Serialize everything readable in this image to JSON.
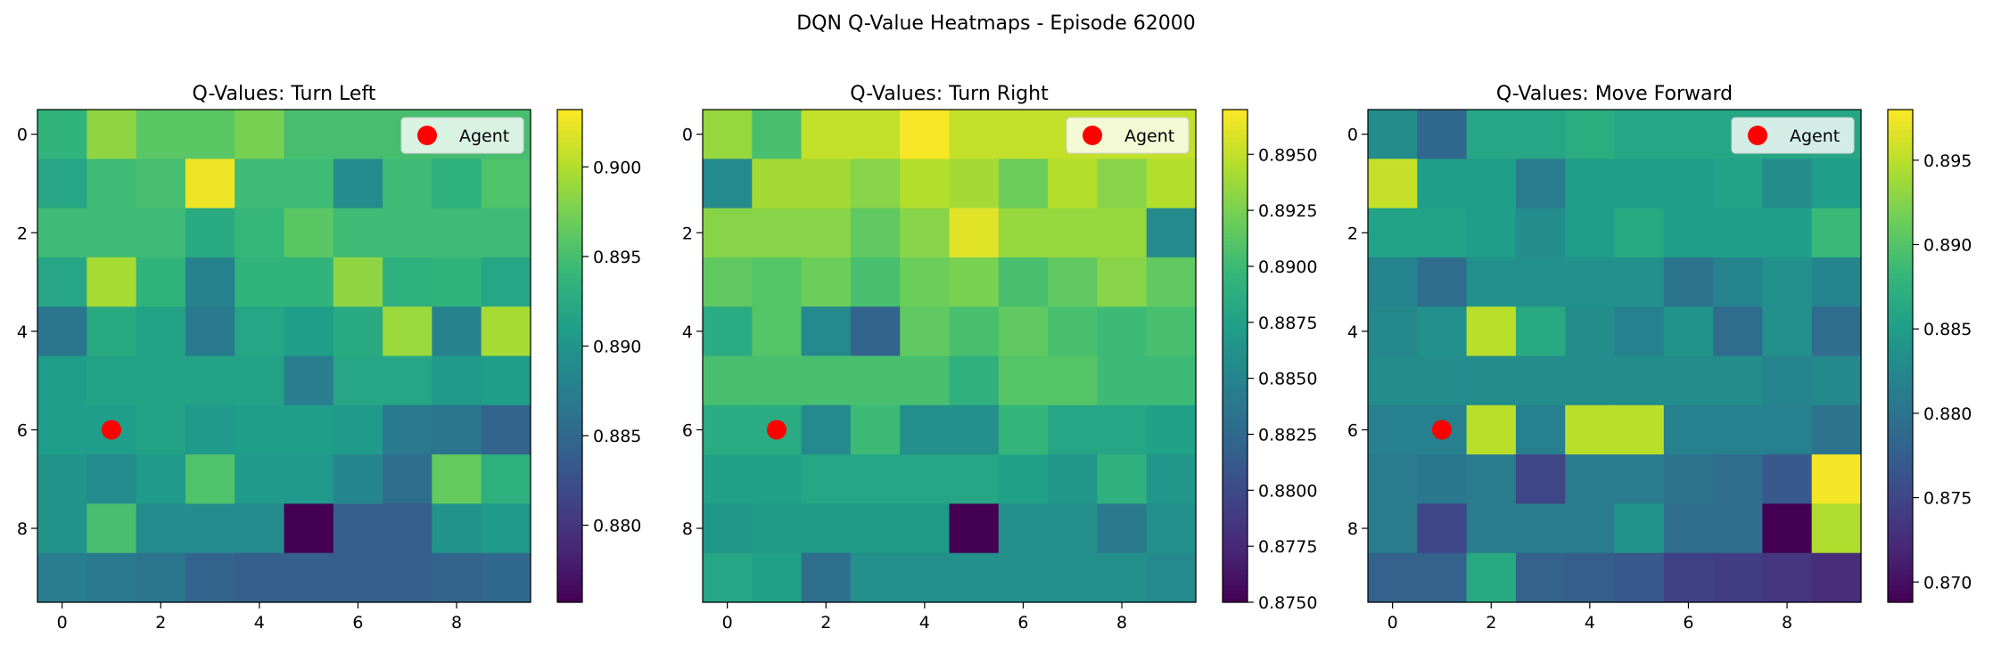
{
  "figure": {
    "title": "DQN Q-Value Heatmaps - Episode 62000"
  },
  "colormap": {
    "name": "viridis",
    "stops": [
      "#440154",
      "#482878",
      "#3e4989",
      "#31688e",
      "#26828e",
      "#1f9e89",
      "#35b779",
      "#6ece58",
      "#b5de2b",
      "#fde725"
    ]
  },
  "chart_data": [
    {
      "type": "heatmap",
      "title": "Q-Values: Turn Left",
      "x_ticks": [
        0,
        2,
        4,
        6,
        8
      ],
      "y_ticks": [
        0,
        2,
        4,
        6,
        8
      ],
      "cbar_range": [
        0.8757,
        0.9032
      ],
      "cbar_ticks": [
        "0.880",
        "0.885",
        "0.890",
        "0.895",
        "0.900"
      ],
      "legend": {
        "label": "Agent",
        "position": "top-right",
        "color": "#ff0000"
      },
      "agent": {
        "x": 1,
        "y": 6
      },
      "grid": [
        [
          0.8935,
          0.8985,
          0.896,
          0.896,
          0.8975,
          0.895,
          0.895,
          0.895,
          0.895,
          0.895
        ],
        [
          0.892,
          0.8945,
          0.895,
          0.9025,
          0.8945,
          0.8945,
          0.889,
          0.8945,
          0.893,
          0.8955
        ],
        [
          0.8945,
          0.8945,
          0.8945,
          0.8925,
          0.894,
          0.896,
          0.8945,
          0.8945,
          0.8945,
          0.8945
        ],
        [
          0.892,
          0.8995,
          0.8935,
          0.888,
          0.8935,
          0.8935,
          0.8985,
          0.893,
          0.8935,
          0.892
        ],
        [
          0.8865,
          0.8925,
          0.8915,
          0.887,
          0.892,
          0.891,
          0.8925,
          0.899,
          0.888,
          0.8995
        ],
        [
          0.891,
          0.8915,
          0.8915,
          0.8915,
          0.8915,
          0.8875,
          0.892,
          0.892,
          0.8905,
          0.891
        ],
        [
          0.891,
          0.891,
          0.8915,
          0.8905,
          0.891,
          0.891,
          0.8905,
          0.887,
          0.8865,
          0.8845
        ],
        [
          0.89,
          0.889,
          0.8905,
          0.8955,
          0.8905,
          0.8905,
          0.8885,
          0.8855,
          0.8965,
          0.893
        ],
        [
          0.89,
          0.895,
          0.889,
          0.889,
          0.889,
          0.8757,
          0.884,
          0.884,
          0.89,
          0.8905
        ],
        [
          0.8875,
          0.887,
          0.8865,
          0.8845,
          0.884,
          0.884,
          0.884,
          0.884,
          0.8845,
          0.885
        ]
      ]
    },
    {
      "type": "heatmap",
      "title": "Q-Values: Turn Right",
      "x_ticks": [
        0,
        2,
        4,
        6,
        8
      ],
      "y_ticks": [
        0,
        2,
        4,
        6,
        8
      ],
      "cbar_range": [
        0.875,
        0.897
      ],
      "cbar_ticks": [
        "0.8750",
        "0.8775",
        "0.8800",
        "0.8825",
        "0.8850",
        "0.8875",
        "0.8900",
        "0.8925",
        "0.8950"
      ],
      "legend": {
        "label": "Agent",
        "position": "top-right",
        "color": "#ff0000"
      },
      "agent": {
        "x": 1,
        "y": 6
      },
      "grid": [
        [
          0.8935,
          0.8905,
          0.895,
          0.895,
          0.8968,
          0.895,
          0.895,
          0.895,
          0.895,
          0.895
        ],
        [
          0.8855,
          0.894,
          0.894,
          0.893,
          0.8945,
          0.894,
          0.892,
          0.8945,
          0.893,
          0.8945
        ],
        [
          0.893,
          0.893,
          0.893,
          0.8915,
          0.893,
          0.896,
          0.8935,
          0.8935,
          0.8935,
          0.8855
        ],
        [
          0.8915,
          0.891,
          0.892,
          0.8905,
          0.892,
          0.8925,
          0.8905,
          0.8915,
          0.893,
          0.8915
        ],
        [
          0.8885,
          0.891,
          0.8855,
          0.882,
          0.8915,
          0.8905,
          0.8915,
          0.8905,
          0.89,
          0.8905
        ],
        [
          0.8905,
          0.8905,
          0.8905,
          0.8905,
          0.8905,
          0.889,
          0.891,
          0.891,
          0.89,
          0.89
        ],
        [
          0.8885,
          0.8885,
          0.8855,
          0.89,
          0.886,
          0.886,
          0.8895,
          0.888,
          0.888,
          0.8875
        ],
        [
          0.8875,
          0.8875,
          0.888,
          0.888,
          0.888,
          0.888,
          0.8875,
          0.8865,
          0.889,
          0.8865
        ],
        [
          0.8865,
          0.887,
          0.887,
          0.887,
          0.887,
          0.875,
          0.886,
          0.886,
          0.884,
          0.886
        ],
        [
          0.888,
          0.8875,
          0.883,
          0.886,
          0.886,
          0.886,
          0.886,
          0.886,
          0.886,
          0.8855
        ]
      ]
    },
    {
      "type": "heatmap",
      "title": "Q-Values: Move Forward",
      "x_ticks": [
        0,
        2,
        4,
        6,
        8
      ],
      "y_ticks": [
        0,
        2,
        4,
        6,
        8
      ],
      "cbar_range": [
        0.8688,
        0.898
      ],
      "cbar_ticks": [
        "0.870",
        "0.875",
        "0.880",
        "0.885",
        "0.890",
        "0.895"
      ],
      "legend": {
        "label": "Agent",
        "position": "top-right",
        "color": "#ff0000"
      },
      "agent": {
        "x": 1,
        "y": 6
      },
      "grid": [
        [
          0.883,
          0.8785,
          0.886,
          0.886,
          0.887,
          0.886,
          0.886,
          0.886,
          0.886,
          0.886
        ],
        [
          0.8955,
          0.885,
          0.885,
          0.881,
          0.885,
          0.885,
          0.885,
          0.8855,
          0.883,
          0.885
        ],
        [
          0.8855,
          0.8855,
          0.885,
          0.883,
          0.885,
          0.8865,
          0.885,
          0.885,
          0.885,
          0.8885
        ],
        [
          0.882,
          0.879,
          0.8835,
          0.8835,
          0.8835,
          0.8835,
          0.88,
          0.882,
          0.8835,
          0.882
        ],
        [
          0.8825,
          0.8835,
          0.895,
          0.8865,
          0.883,
          0.8815,
          0.884,
          0.879,
          0.8835,
          0.879
        ],
        [
          0.883,
          0.883,
          0.883,
          0.883,
          0.883,
          0.883,
          0.883,
          0.883,
          0.882,
          0.8825
        ],
        [
          0.8815,
          0.8815,
          0.895,
          0.8815,
          0.895,
          0.895,
          0.8815,
          0.8815,
          0.8815,
          0.88
        ],
        [
          0.881,
          0.8805,
          0.881,
          0.875,
          0.881,
          0.881,
          0.88,
          0.879,
          0.877,
          0.8975
        ],
        [
          0.881,
          0.875,
          0.881,
          0.881,
          0.881,
          0.884,
          0.879,
          0.879,
          0.8688,
          0.8945
        ],
        [
          0.878,
          0.878,
          0.8865,
          0.878,
          0.8775,
          0.877,
          0.8745,
          0.874,
          0.8735,
          0.8725
        ]
      ]
    }
  ]
}
